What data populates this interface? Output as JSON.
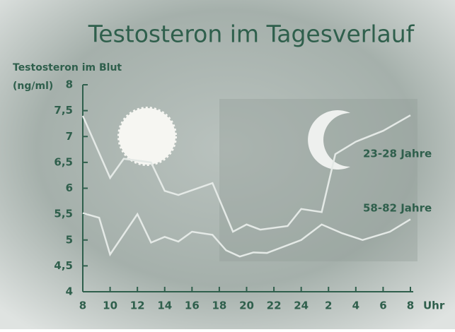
{
  "chart_data": {
    "type": "line",
    "title": "Testosteron im Tagesverlauf",
    "y_label": "Testosteron im Blut",
    "y_unit": "(ng/ml)",
    "x_unit": "Uhr",
    "xlim": [
      8,
      32
    ],
    "xticks": [
      8,
      10,
      12,
      14,
      16,
      18,
      20,
      22,
      24,
      {
        "value": 26,
        "label": "2"
      },
      {
        "value": 28,
        "label": "4"
      },
      {
        "value": 30,
        "label": "6"
      },
      {
        "value": 32,
        "label": "8"
      }
    ],
    "ylim": [
      4,
      8
    ],
    "yticks": [
      4,
      {
        "value": 4.5,
        "label": "4,5"
      },
      5,
      {
        "value": 5.5,
        "label": "5,5"
      },
      6,
      {
        "value": 6.5,
        "label": "6,5"
      },
      7,
      {
        "value": 7.5,
        "label": "7,5"
      },
      8
    ],
    "series": [
      {
        "name": "23-28 Jahre",
        "color": "#e4e9e6",
        "x": [
          8,
          10,
          11,
          13,
          14,
          15,
          17.5,
          19,
          20,
          21,
          23,
          24,
          25.5,
          26.5,
          28,
          30,
          32
        ],
        "values": [
          7.4,
          6.2,
          6.57,
          6.5,
          5.95,
          5.87,
          6.1,
          5.16,
          5.3,
          5.2,
          5.27,
          5.6,
          5.54,
          6.66,
          6.9,
          7.11,
          7.41
        ]
      },
      {
        "name": "58-82 Jahre",
        "color": "#e4e9e6",
        "x": [
          8,
          9.2,
          10,
          12,
          13,
          14,
          15,
          16,
          17.5,
          18.5,
          19.5,
          20.5,
          21.5,
          24,
          25.5,
          27,
          28.5,
          30.5,
          32
        ],
        "values": [
          5.52,
          5.43,
          4.72,
          5.5,
          4.95,
          5.06,
          4.97,
          5.16,
          5.1,
          4.8,
          4.68,
          4.76,
          4.75,
          5.0,
          5.3,
          5.13,
          5.0,
          5.16,
          5.4
        ]
      }
    ]
  }
}
